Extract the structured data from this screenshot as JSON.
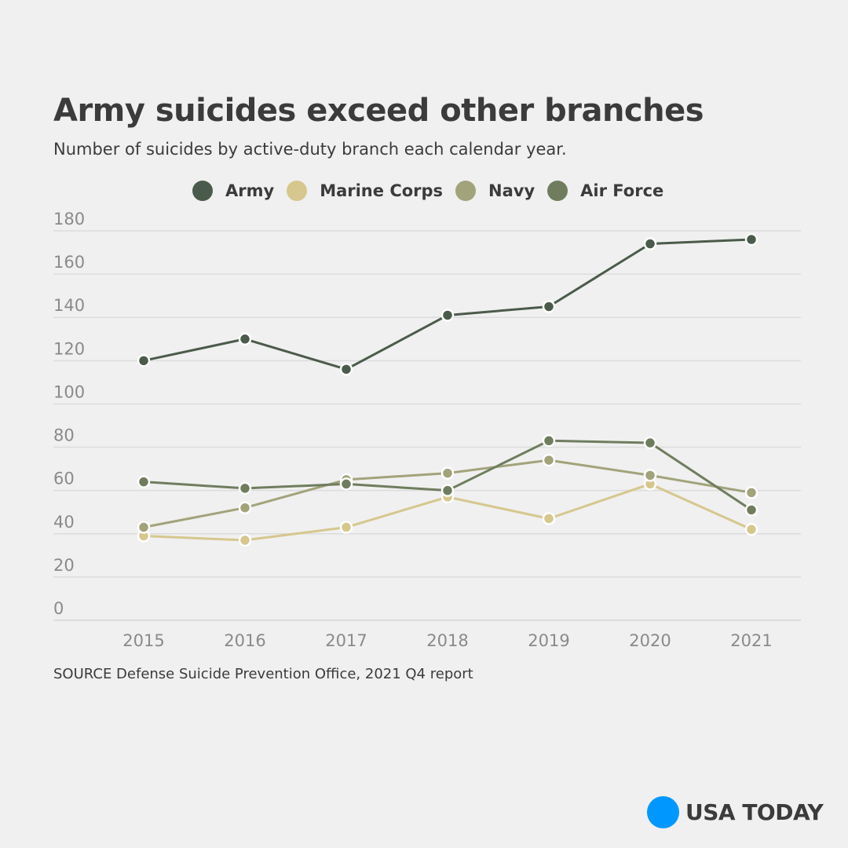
{
  "chart_data": {
    "type": "line",
    "title": "Army suicides exceed other branches",
    "subtitle": "Number of suicides by active-duty branch each calendar year.",
    "xlabel": "",
    "ylabel": "",
    "x": [
      "2015",
      "2016",
      "2017",
      "2018",
      "2019",
      "2020",
      "2021"
    ],
    "ylim": [
      0,
      180
    ],
    "yticks": [
      0,
      20,
      40,
      60,
      80,
      100,
      120,
      140,
      160,
      180
    ],
    "grid": true,
    "legend_position": "top-center",
    "series": [
      {
        "name": "Army",
        "color": "#4b5b4b",
        "values": [
          120,
          130,
          116,
          141,
          145,
          174,
          176
        ]
      },
      {
        "name": "Marine Corps",
        "color": "#d6c78e",
        "values": [
          39,
          37,
          43,
          57,
          47,
          63,
          42
        ]
      },
      {
        "name": "Navy",
        "color": "#a2a37b",
        "values": [
          43,
          52,
          65,
          68,
          74,
          67,
          59
        ]
      },
      {
        "name": "Air Force",
        "color": "#6f7d5e",
        "values": [
          64,
          61,
          63,
          60,
          83,
          82,
          51
        ]
      }
    ],
    "source": "SOURCE Defense Suicide Prevention Office, 2021 Q4 report"
  },
  "branding": {
    "name": "USA TODAY",
    "color": "#0098fe"
  }
}
